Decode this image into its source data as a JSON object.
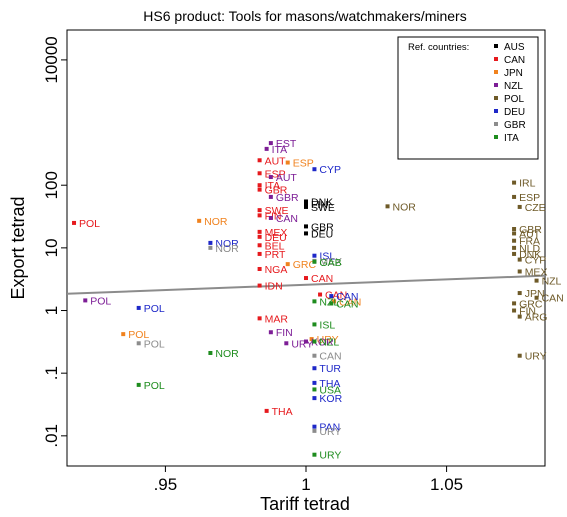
{
  "chart_data": {
    "type": "scatter",
    "title": "HS6 product:  Tools for masons/watchmakers/miners",
    "xlabel": "Tariff tetrad",
    "ylabel": "Export tetrad",
    "xlim": [
      0.915,
      1.085
    ],
    "ylim": [
      0.0033,
      30000
    ],
    "yscale": "log",
    "x_ticks": [
      {
        "value": 0.95,
        "label": ".95"
      },
      {
        "value": 1.0,
        "label": "1"
      },
      {
        "value": 1.05,
        "label": "1.05"
      }
    ],
    "y_ticks": [
      {
        "value": 0.01,
        "label": ".01"
      },
      {
        "value": 0.1,
        "label": ".1"
      },
      {
        "value": 1,
        "label": "1"
      },
      {
        "value": 10,
        "label": "10"
      },
      {
        "value": 100,
        "label": "100"
      },
      {
        "value": 10000,
        "label": "10000"
      }
    ],
    "fit_line": {
      "color": "#8c8c8c",
      "x": [
        0.915,
        1.085
      ],
      "y": [
        1.85,
        3.6
      ]
    },
    "legend": {
      "title": "Ref. countries:",
      "position": "top-right"
    },
    "series": [
      {
        "name": "AUS",
        "color": "#000000",
        "points": [
          {
            "x": 1.0,
            "y": 55,
            "label": "DNK"
          },
          {
            "x": 1.0,
            "y": 45,
            "label": "SWE"
          },
          {
            "x": 1.0,
            "y": 50,
            "label": "FIN"
          },
          {
            "x": 1.0,
            "y": 22,
            "label": "GBR"
          },
          {
            "x": 1.0,
            "y": 17,
            "label": "DEU"
          }
        ]
      },
      {
        "name": "CAN",
        "color": "#e6191d",
        "points": [
          {
            "x": 0.9175,
            "y": 25,
            "label": "POL"
          },
          {
            "x": 0.9835,
            "y": 250,
            "label": "AUT"
          },
          {
            "x": 0.9835,
            "y": 155,
            "label": "ESP"
          },
          {
            "x": 0.9835,
            "y": 100,
            "label": "ITA"
          },
          {
            "x": 0.9835,
            "y": 85,
            "label": "GBR"
          },
          {
            "x": 0.9835,
            "y": 40,
            "label": "SWE"
          },
          {
            "x": 0.9835,
            "y": 33,
            "label": "FIN"
          },
          {
            "x": 0.9835,
            "y": 18,
            "label": "MEX"
          },
          {
            "x": 0.9835,
            "y": 15,
            "label": "DEU"
          },
          {
            "x": 0.9835,
            "y": 11,
            "label": "BEL"
          },
          {
            "x": 0.9835,
            "y": 8,
            "label": "PRT"
          },
          {
            "x": 0.9835,
            "y": 4.6,
            "label": "NGA"
          },
          {
            "x": 0.9835,
            "y": 2.5,
            "label": "IDN"
          },
          {
            "x": 0.9835,
            "y": 0.75,
            "label": "MAR"
          },
          {
            "x": 0.986,
            "y": 0.025,
            "label": "THA"
          },
          {
            "x": 1.0,
            "y": 3.3,
            "label": "CAN"
          },
          {
            "x": 1.005,
            "y": 1.8,
            "label": "CAN"
          }
        ]
      },
      {
        "name": "JPN",
        "color": "#f0821e",
        "points": [
          {
            "x": 0.962,
            "y": 27,
            "label": "NOR"
          },
          {
            "x": 0.9935,
            "y": 230,
            "label": "ESP"
          },
          {
            "x": 0.9935,
            "y": 5.5,
            "label": "GRC"
          },
          {
            "x": 0.935,
            "y": 0.42,
            "label": "POL"
          },
          {
            "x": 1.002,
            "y": 0.35,
            "label": "URY"
          },
          {
            "x": 1.01,
            "y": 1.4,
            "label": "CAN"
          }
        ]
      },
      {
        "name": "NZL",
        "color": "#7d1e96",
        "points": [
          {
            "x": 0.9875,
            "y": 470,
            "label": "EST"
          },
          {
            "x": 0.986,
            "y": 380,
            "label": "ITA"
          },
          {
            "x": 0.9875,
            "y": 135,
            "label": "AUT"
          },
          {
            "x": 0.9875,
            "y": 65,
            "label": "GBR"
          },
          {
            "x": 0.9875,
            "y": 30,
            "label": "CAN"
          },
          {
            "x": 0.9875,
            "y": 0.45,
            "label": "FIN"
          },
          {
            "x": 0.9215,
            "y": 1.45,
            "label": "POL"
          },
          {
            "x": 0.993,
            "y": 0.3,
            "label": "URY"
          },
          {
            "x": 1.0,
            "y": 0.32,
            "label": "KOR"
          }
        ]
      },
      {
        "name": "POL",
        "color": "#6e5a28",
        "points": [
          {
            "x": 1.029,
            "y": 46,
            "label": "NOR"
          },
          {
            "x": 1.074,
            "y": 110,
            "label": "IRL"
          },
          {
            "x": 1.074,
            "y": 65,
            "label": "ESP"
          },
          {
            "x": 1.076,
            "y": 45,
            "label": "CZE"
          },
          {
            "x": 1.074,
            "y": 20,
            "label": "GBR"
          },
          {
            "x": 1.074,
            "y": 17,
            "label": "AUT"
          },
          {
            "x": 1.074,
            "y": 13,
            "label": "FRA"
          },
          {
            "x": 1.074,
            "y": 10,
            "label": "NLD"
          },
          {
            "x": 1.074,
            "y": 8,
            "label": "DNK"
          },
          {
            "x": 1.076,
            "y": 6.5,
            "label": "CYP"
          },
          {
            "x": 1.076,
            "y": 4.2,
            "label": "MEX"
          },
          {
            "x": 1.082,
            "y": 3.0,
            "label": "NZL"
          },
          {
            "x": 1.076,
            "y": 1.9,
            "label": "JPN"
          },
          {
            "x": 1.082,
            "y": 1.6,
            "label": "CAN"
          },
          {
            "x": 1.074,
            "y": 1.3,
            "label": "GRC"
          },
          {
            "x": 1.074,
            "y": 1.0,
            "label": "FIN"
          },
          {
            "x": 1.076,
            "y": 0.8,
            "label": "ARG"
          },
          {
            "x": 1.076,
            "y": 0.19,
            "label": "URY"
          }
        ]
      },
      {
        "name": "DEU",
        "color": "#1e28c8",
        "points": [
          {
            "x": 1.003,
            "y": 180,
            "label": "CYP"
          },
          {
            "x": 0.966,
            "y": 12,
            "label": "NOR"
          },
          {
            "x": 0.9405,
            "y": 1.1,
            "label": "POL"
          },
          {
            "x": 1.009,
            "y": 1.7,
            "label": "CAN"
          },
          {
            "x": 1.003,
            "y": 0.12,
            "label": "TUR"
          },
          {
            "x": 1.003,
            "y": 0.04,
            "label": "KOR"
          },
          {
            "x": 1.003,
            "y": 0.014,
            "label": "PAN"
          },
          {
            "x": 1.003,
            "y": 0.07,
            "label": "THA"
          },
          {
            "x": 1.003,
            "y": 7.5,
            "label": "ISL"
          }
        ]
      },
      {
        "name": "GBR",
        "color": "#8c8c8c",
        "points": [
          {
            "x": 0.966,
            "y": 10,
            "label": "NOR"
          },
          {
            "x": 0.9405,
            "y": 0.3,
            "label": "POL"
          },
          {
            "x": 1.003,
            "y": 0.19,
            "label": "CAN"
          },
          {
            "x": 1.003,
            "y": 0.012,
            "label": "URY"
          },
          {
            "x": 1.003,
            "y": 6.2,
            "label": "MEX"
          }
        ]
      },
      {
        "name": "ITA",
        "color": "#1e8c1e",
        "points": [
          {
            "x": 0.966,
            "y": 0.21,
            "label": "NOR"
          },
          {
            "x": 0.9405,
            "y": 0.065,
            "label": "POL"
          },
          {
            "x": 1.003,
            "y": 0.005,
            "label": "URY"
          },
          {
            "x": 1.003,
            "y": 6.0,
            "label": "GAB"
          },
          {
            "x": 1.003,
            "y": 1.4,
            "label": "NZL"
          },
          {
            "x": 1.003,
            "y": 0.32,
            "label": "NZL"
          },
          {
            "x": 1.009,
            "y": 1.3,
            "label": "CAN"
          },
          {
            "x": 1.003,
            "y": 0.055,
            "label": "USA"
          },
          {
            "x": 1.003,
            "y": 0.6,
            "label": "ISL"
          }
        ]
      }
    ]
  }
}
